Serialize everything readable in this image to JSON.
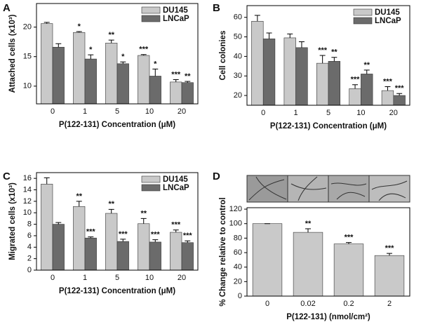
{
  "chart_data": [
    {
      "type": "bar",
      "panel_label": "A",
      "xlabel": "P(122-131) Concentration (μM)",
      "ylabel": "Attached cells (x10³)",
      "categories": [
        "0",
        "1",
        "5",
        "10",
        "20"
      ],
      "series": [
        {
          "name": "DU145",
          "color": "#c9c9c9",
          "values": [
            20.6,
            19.1,
            17.3,
            15.2,
            10.7
          ],
          "errors": [
            0.2,
            0.15,
            0.5,
            0.15,
            0.4
          ],
          "annotations": [
            null,
            "*",
            "**",
            "***",
            "***"
          ]
        },
        {
          "name": "LNCaP",
          "color": "#6b6b6b",
          "values": [
            16.6,
            14.6,
            13.8,
            11.7,
            10.6
          ],
          "errors": [
            0.6,
            0.7,
            0.3,
            1.2,
            0.2
          ],
          "annotations": [
            null,
            "*",
            "*",
            "*",
            "**"
          ]
        }
      ],
      "ylim": [
        7,
        24
      ],
      "yticks": [
        10,
        15,
        20
      ],
      "legend": "upper right"
    },
    {
      "type": "bar",
      "panel_label": "B",
      "xlabel": "P(122-131) Concentration (μM)",
      "ylabel": "Cell colonies",
      "categories": [
        "0",
        "1",
        "5",
        "10",
        "20"
      ],
      "series": [
        {
          "name": "DU145",
          "color": "#c9c9c9",
          "values": [
            58,
            49.5,
            36.5,
            23.5,
            22.5
          ],
          "errors": [
            3,
            2,
            4,
            2,
            2
          ],
          "annotations": [
            null,
            null,
            "***",
            "***",
            "***"
          ]
        },
        {
          "name": "LNCaP",
          "color": "#6b6b6b",
          "values": [
            49,
            44.5,
            37.5,
            31,
            20
          ],
          "errors": [
            3,
            3,
            2,
            2,
            1
          ],
          "annotations": [
            null,
            null,
            "**",
            "**",
            "***"
          ]
        }
      ],
      "ylim": [
        15,
        66
      ],
      "yticks": [
        20,
        30,
        40,
        50,
        60
      ],
      "legend": "upper right"
    },
    {
      "type": "bar",
      "panel_label": "C",
      "xlabel": "P(122-131) Concentration (μM)",
      "ylabel": "Migrated cells (x10³)",
      "categories": [
        "0",
        "1",
        "5",
        "10",
        "20"
      ],
      "series": [
        {
          "name": "DU145",
          "color": "#c9c9c9",
          "values": [
            15,
            11.1,
            9.9,
            8.1,
            6.6
          ],
          "errors": [
            1.1,
            0.9,
            0.7,
            0.9,
            0.4
          ],
          "annotations": [
            null,
            "**",
            "**",
            "**",
            "***"
          ]
        },
        {
          "name": "LNCaP",
          "color": "#6b6b6b",
          "values": [
            8,
            5.6,
            5,
            4.9,
            4.8
          ],
          "errors": [
            0.3,
            0.2,
            0.4,
            0.4,
            0.3
          ],
          "annotations": [
            null,
            "***",
            "***",
            "***",
            "***"
          ]
        }
      ],
      "ylim": [
        0,
        17
      ],
      "yticks": [
        0,
        2,
        4,
        6,
        8,
        10,
        12,
        14,
        16
      ],
      "legend": "upper right"
    },
    {
      "type": "bar",
      "panel_label": "D",
      "xlabel": "P(122-131) (nmol/cm²)",
      "ylabel": "% Change relative to control",
      "categories": [
        "0",
        "0.02",
        "0.2",
        "2"
      ],
      "series": [
        {
          "color": "#c9c9c9",
          "values": [
            100,
            88,
            72,
            56
          ],
          "errors": [
            0,
            5,
            2,
            3
          ],
          "annotations": [
            null,
            "**",
            "***",
            "***"
          ]
        }
      ],
      "ylim": [
        0,
        122
      ],
      "yticks": [
        0,
        20,
        40,
        60,
        80,
        100,
        120
      ]
    }
  ]
}
